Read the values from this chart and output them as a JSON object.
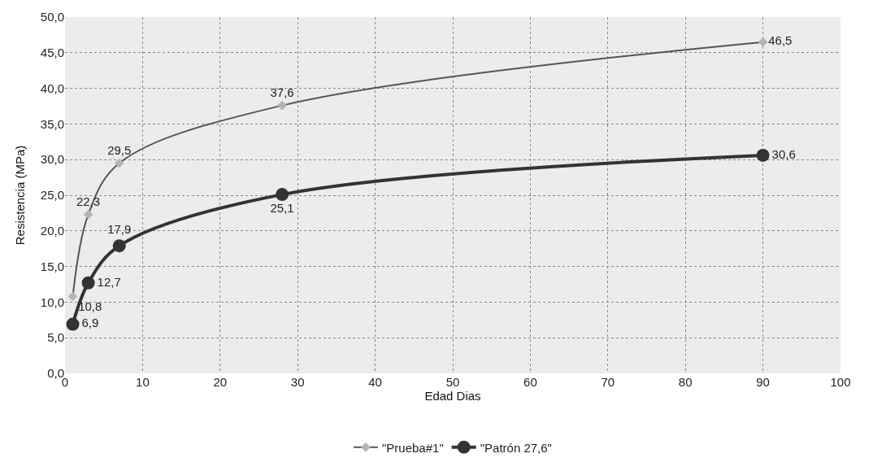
{
  "chart_data": {
    "type": "line",
    "xlabel": "Edad Dias",
    "ylabel": "Resistencia (MPa)",
    "xlim": [
      0,
      100
    ],
    "xticks": [
      0,
      10,
      20,
      30,
      40,
      50,
      60,
      70,
      80,
      90,
      100
    ],
    "ylim": [
      0,
      50
    ],
    "yticks": [
      {
        "value": 0,
        "label": "0,0"
      },
      {
        "value": 5,
        "label": "5,0"
      },
      {
        "value": 10,
        "label": "10,0"
      },
      {
        "value": 15,
        "label": "15,0"
      },
      {
        "value": 20,
        "label": "20,0"
      },
      {
        "value": 25,
        "label": "25,0"
      },
      {
        "value": 30,
        "label": "30,0"
      },
      {
        "value": 35,
        "label": "35,0"
      },
      {
        "value": 40,
        "label": "40,0"
      },
      {
        "value": 45,
        "label": "45,0"
      },
      {
        "value": 50,
        "label": "50,0"
      }
    ],
    "x": [
      1,
      3,
      7,
      28,
      90
    ],
    "grid": true,
    "legend": "bottom",
    "line_style": "solid",
    "series": [
      {
        "name": "\"Prueba#1\"",
        "color": "#b4b4b4",
        "marker": "diamond",
        "values": [
          10.8,
          22.3,
          29.5,
          37.6,
          46.5
        ],
        "value_labels": [
          "10,8",
          "22,3",
          "29,5",
          "37,6",
          "46,5"
        ]
      },
      {
        "name": "\"Patrón 27,6\"",
        "color": "#333333",
        "marker": "circle",
        "values": [
          6.9,
          12.7,
          17.9,
          25.1,
          30.6
        ],
        "value_labels": [
          "6,9",
          "12,7",
          "17,9",
          "25,1",
          "30,6"
        ]
      }
    ]
  }
}
